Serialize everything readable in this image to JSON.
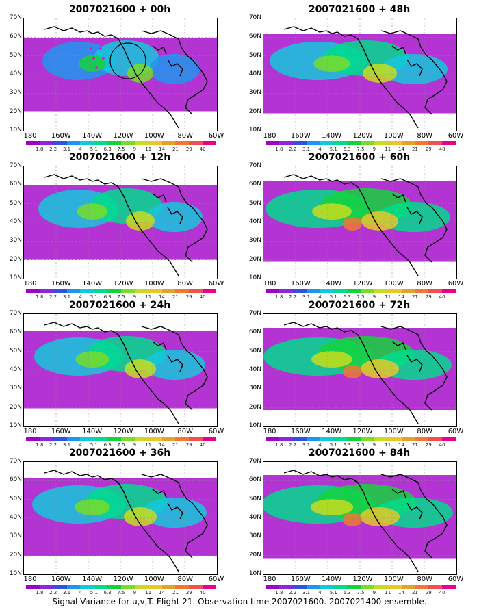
{
  "panels": [
    {
      "title": "2007021600 + 00h",
      "intensity": 0.55
    },
    {
      "title": "2007021600 + 48h",
      "intensity": 0.85
    },
    {
      "title": "2007021600 + 12h",
      "intensity": 0.65
    },
    {
      "title": "2007021600 + 60h",
      "intensity": 0.95
    },
    {
      "title": "2007021600 + 24h",
      "intensity": 0.75
    },
    {
      "title": "2007021600 + 72h",
      "intensity": 1.0
    },
    {
      "title": "2007021600 + 36h",
      "intensity": 0.8
    },
    {
      "title": "2007021600 + 84h",
      "intensity": 1.05
    }
  ],
  "y_ticks": [
    "70N",
    "60N",
    "50N",
    "40N",
    "30N",
    "20N",
    "10N"
  ],
  "x_ticks": [
    "180",
    "160W",
    "140W",
    "120W",
    "100W",
    "80W",
    "60W"
  ],
  "colorbar": {
    "colors": [
      "#a000c8",
      "#8c28dc",
      "#3250e6",
      "#1e96f0",
      "#14c8dc",
      "#00dc8c",
      "#14d23c",
      "#78dc28",
      "#c8dc1e",
      "#e6c828",
      "#e6a032",
      "#f07832",
      "#f05050",
      "#e6008c"
    ],
    "labels": [
      "1.8",
      "2.2",
      "3.1",
      "4",
      "5.1",
      "6.3",
      "7.5",
      "9",
      "11",
      "14",
      "21",
      "29",
      "40"
    ]
  },
  "caption": "Signal Variance for u,v,T. Flight 21. Observation time 2007021600. 2007021400 ensemble."
}
